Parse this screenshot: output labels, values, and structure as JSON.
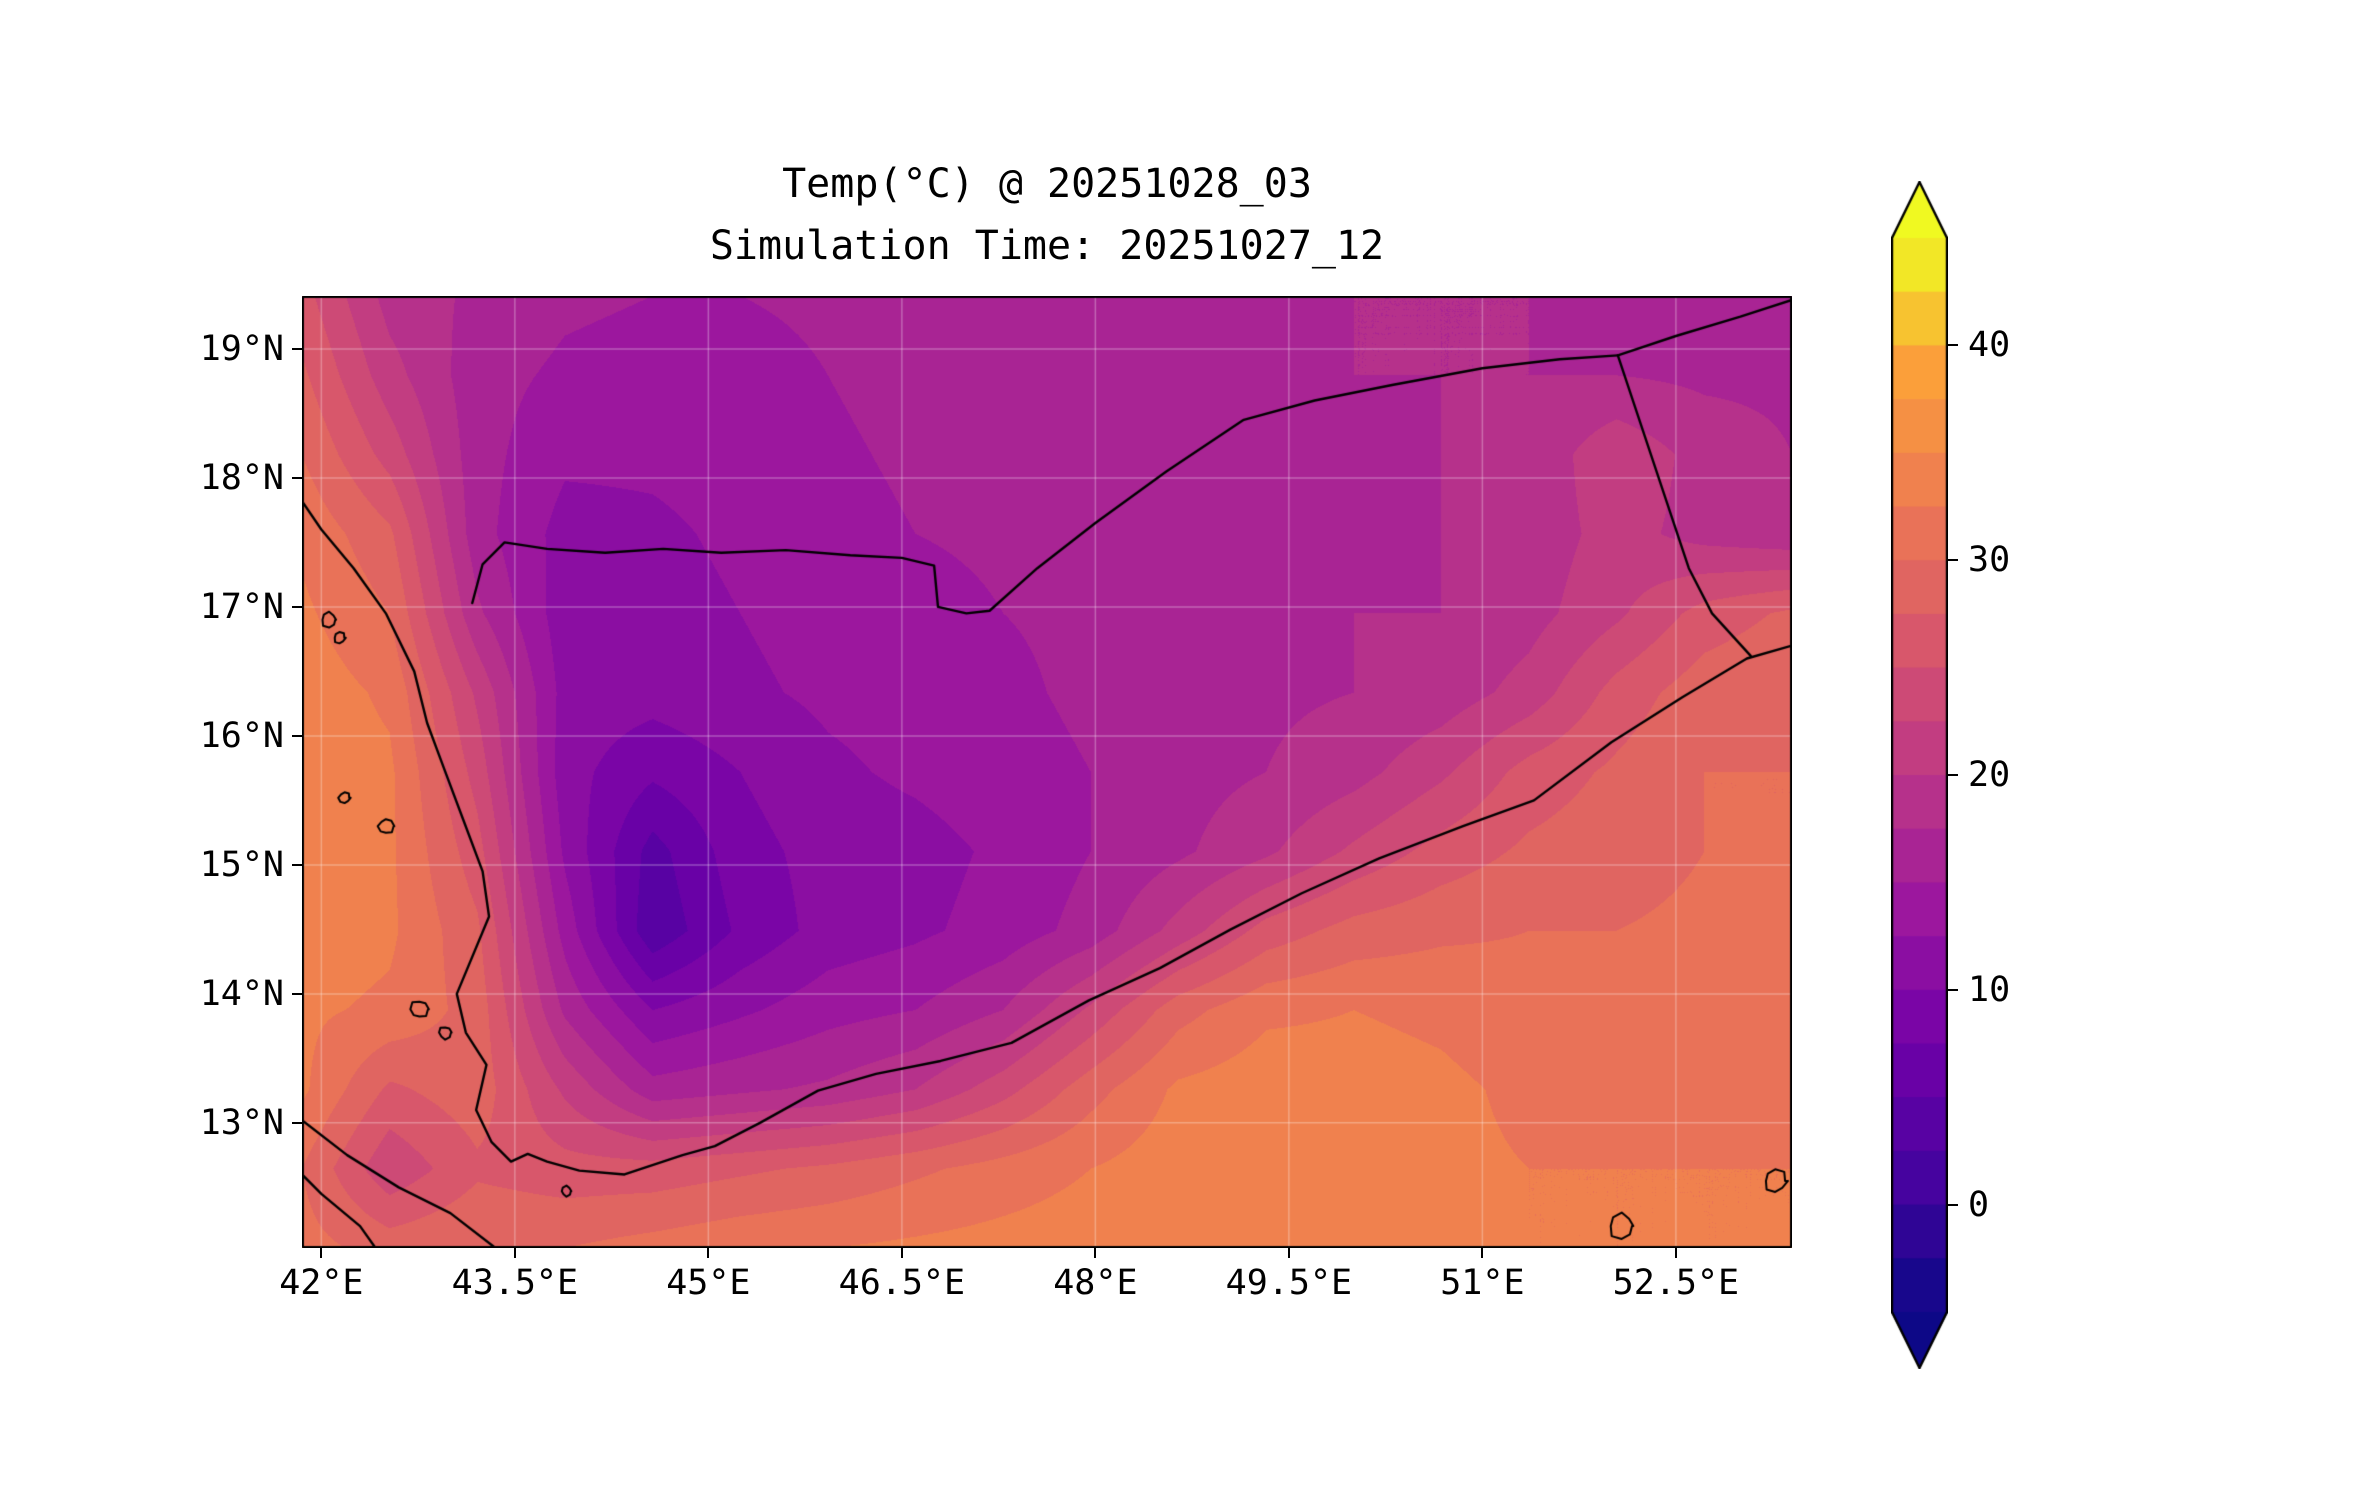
{
  "title": {
    "line1": "Temp(°C) @ 20251028_03",
    "line2": "Simulation Time: 20251027_12"
  },
  "axes": {
    "x_ticks": [
      {
        "label": "42°E",
        "lon": 42
      },
      {
        "label": "43.5°E",
        "lon": 43.5
      },
      {
        "label": "45°E",
        "lon": 45
      },
      {
        "label": "46.5°E",
        "lon": 46.5
      },
      {
        "label": "48°E",
        "lon": 48
      },
      {
        "label": "49.5°E",
        "lon": 49.5
      },
      {
        "label": "51°E",
        "lon": 51
      },
      {
        "label": "52.5°E",
        "lon": 52.5
      }
    ],
    "y_ticks": [
      {
        "label": "19°N",
        "lat": 19
      },
      {
        "label": "18°N",
        "lat": 18
      },
      {
        "label": "17°N",
        "lat": 17
      },
      {
        "label": "16°N",
        "lat": 16
      },
      {
        "label": "15°N",
        "lat": 15
      },
      {
        "label": "14°N",
        "lat": 14
      },
      {
        "label": "13°N",
        "lat": 13
      }
    ]
  },
  "colorbar": {
    "ticks": [
      {
        "label": "40",
        "value": 40
      },
      {
        "label": "30",
        "value": 30
      },
      {
        "label": "20",
        "value": 20
      },
      {
        "label": "10",
        "value": 10
      },
      {
        "label": "0",
        "value": 0
      }
    ],
    "vmin": -5,
    "vmax": 45,
    "band_step": 2.5,
    "over_color": "#f0f921",
    "under_color": "#0d0887"
  },
  "colormap": {
    "name": "plasma",
    "anchors": [
      [
        0.0,
        "#0d0887"
      ],
      [
        0.125,
        "#46039f"
      ],
      [
        0.25,
        "#7201a8"
      ],
      [
        0.375,
        "#9c179e"
      ],
      [
        0.5,
        "#bd3786"
      ],
      [
        0.625,
        "#d8576b"
      ],
      [
        0.75,
        "#ed7953"
      ],
      [
        0.875,
        "#fb9f3a"
      ],
      [
        1.0,
        "#f0f921"
      ]
    ]
  },
  "chart_data": {
    "type": "heatmap",
    "title": "Temp(°C) @ 20251028_03",
    "subtitle": "Simulation Time: 20251027_12",
    "units": "°C",
    "lon_range": [
      41.85,
      53.4
    ],
    "lat_range": [
      12.03,
      19.41
    ],
    "levels": {
      "min": -5,
      "max": 45,
      "step": 2.5
    },
    "grid_lons": [
      41.85,
      42.53,
      43.21,
      43.89,
      44.57,
      45.25,
      45.93,
      46.61,
      47.29,
      47.96,
      48.64,
      49.32,
      50.0,
      50.68,
      51.36,
      52.04,
      52.72,
      53.4
    ],
    "grid_lats": [
      19.41,
      18.8,
      18.18,
      17.57,
      16.95,
      16.34,
      15.72,
      15.11,
      14.49,
      13.88,
      13.26,
      12.65,
      12.03
    ],
    "values_c": [
      [
        26,
        19,
        17,
        15.5,
        15,
        15,
        15.5,
        16.5,
        17,
        17,
        17,
        17,
        17.5,
        17.5,
        17.5,
        17,
        17,
        17
      ],
      [
        28,
        21,
        16,
        14.5,
        14,
        14,
        15,
        16,
        16.5,
        17,
        17,
        17,
        17.5,
        17.5,
        17.5,
        17.5,
        17,
        17
      ],
      [
        30,
        24,
        16,
        13,
        13,
        13.5,
        14.5,
        15.5,
        16,
        16.5,
        17,
        17,
        17,
        17.5,
        18,
        22,
        19,
        17.5
      ],
      [
        32,
        28,
        16,
        11.5,
        12,
        13,
        14,
        15,
        15.5,
        16,
        16.5,
        17,
        17,
        17.5,
        18.5,
        21,
        19,
        18
      ],
      [
        33,
        30,
        18,
        11,
        11.5,
        12.5,
        13.5,
        14,
        15,
        15.5,
        16.5,
        17,
        17.5,
        17.5,
        19,
        22,
        26,
        28
      ],
      [
        34,
        32,
        22,
        11.5,
        11,
        12,
        13,
        13.5,
        14.5,
        15.5,
        16.5,
        17,
        17.5,
        18.5,
        21,
        26,
        29,
        30
      ],
      [
        34,
        33,
        24,
        11,
        8,
        10,
        12,
        13,
        14,
        15,
        16.5,
        17.5,
        19,
        22,
        26,
        28,
        30,
        30
      ],
      [
        34,
        33,
        26,
        12,
        4,
        9,
        11,
        11.5,
        13,
        15,
        17,
        19.5,
        23,
        26,
        28,
        29,
        30,
        30
      ],
      [
        34,
        33,
        28,
        14,
        3,
        8,
        11,
        12,
        13.5,
        16,
        21,
        26,
        28.5,
        29.5,
        30,
        30,
        30.5,
        30.5
      ],
      [
        33,
        32,
        29,
        17,
        10,
        12,
        14,
        15,
        17.5,
        23,
        29,
        32,
        32.5,
        32,
        31,
        30.5,
        31,
        31
      ],
      [
        33,
        27,
        29,
        22,
        16,
        17,
        18,
        20,
        24,
        29,
        33,
        34,
        33.5,
        33,
        32,
        31.5,
        31.5,
        31.5
      ],
      [
        30,
        23,
        27,
        26,
        26,
        27,
        28,
        29.5,
        31,
        32.5,
        34,
        34,
        33.5,
        33,
        32.5,
        32.5,
        32.5,
        32.5
      ],
      [
        31,
        29,
        30,
        30,
        31,
        32,
        32.5,
        33,
        33.5,
        34,
        34,
        33.5,
        33,
        32.5,
        32.5,
        32.5,
        32.5,
        32.5
      ]
    ]
  },
  "geo": {
    "coastline": [
      [
        41.85,
        17.82
      ],
      [
        42.0,
        17.6
      ],
      [
        42.25,
        17.3
      ],
      [
        42.5,
        16.95
      ],
      [
        42.72,
        16.5
      ],
      [
        42.82,
        16.1
      ],
      [
        42.95,
        15.75
      ],
      [
        43.1,
        15.35
      ],
      [
        43.25,
        14.95
      ],
      [
        43.3,
        14.6
      ],
      [
        43.05,
        14.0
      ],
      [
        43.12,
        13.7
      ],
      [
        43.28,
        13.45
      ],
      [
        43.2,
        13.1
      ],
      [
        43.32,
        12.85
      ],
      [
        43.47,
        12.7
      ],
      [
        43.6,
        12.76
      ],
      [
        43.75,
        12.7
      ],
      [
        44.0,
        12.63
      ],
      [
        44.35,
        12.6
      ],
      [
        44.8,
        12.75
      ],
      [
        45.05,
        12.82
      ],
      [
        45.4,
        13.0
      ],
      [
        45.85,
        13.25
      ],
      [
        46.3,
        13.38
      ],
      [
        46.8,
        13.48
      ],
      [
        47.35,
        13.62
      ],
      [
        47.95,
        13.95
      ],
      [
        48.5,
        14.2
      ],
      [
        49.05,
        14.5
      ],
      [
        49.6,
        14.78
      ],
      [
        50.2,
        15.05
      ],
      [
        50.85,
        15.3
      ],
      [
        51.4,
        15.5
      ],
      [
        52.0,
        15.95
      ],
      [
        52.55,
        16.3
      ],
      [
        53.05,
        16.6
      ],
      [
        53.4,
        16.7
      ]
    ],
    "border_saudi": [
      [
        43.17,
        17.03
      ],
      [
        43.25,
        17.33
      ],
      [
        43.42,
        17.5
      ],
      [
        43.75,
        17.45
      ],
      [
        44.2,
        17.42
      ],
      [
        44.65,
        17.45
      ],
      [
        45.1,
        17.42
      ],
      [
        45.6,
        17.44
      ],
      [
        46.1,
        17.4
      ],
      [
        46.5,
        17.38
      ],
      [
        46.75,
        17.32
      ],
      [
        46.78,
        17.0
      ],
      [
        47.0,
        16.95
      ],
      [
        47.18,
        16.97
      ],
      [
        47.55,
        17.3
      ],
      [
        48.0,
        17.65
      ],
      [
        48.55,
        18.05
      ],
      [
        49.15,
        18.45
      ],
      [
        49.7,
        18.6
      ],
      [
        50.3,
        18.72
      ],
      [
        51.0,
        18.85
      ],
      [
        51.6,
        18.92
      ],
      [
        52.05,
        18.95
      ]
    ],
    "border_ne": [
      [
        52.05,
        18.95
      ],
      [
        52.5,
        19.1
      ],
      [
        53.0,
        19.25
      ],
      [
        53.4,
        19.38
      ]
    ],
    "border_oman": [
      [
        52.05,
        18.95
      ],
      [
        52.3,
        18.2
      ],
      [
        52.6,
        17.3
      ],
      [
        52.78,
        16.95
      ],
      [
        53.08,
        16.62
      ]
    ],
    "minor_coast": [
      [
        [
          41.85,
          13.02
        ],
        [
          42.2,
          12.75
        ],
        [
          42.6,
          12.5
        ],
        [
          43.0,
          12.3
        ],
        [
          43.35,
          12.03
        ]
      ],
      [
        [
          41.85,
          12.6
        ],
        [
          42.0,
          12.45
        ],
        [
          42.3,
          12.2
        ],
        [
          42.42,
          12.03
        ]
      ]
    ],
    "islands": [
      {
        "lon": 42.06,
        "lat": 16.9,
        "r": 0.06
      },
      {
        "lon": 42.14,
        "lat": 16.76,
        "r": 0.045
      },
      {
        "lon": 42.18,
        "lat": 15.52,
        "r": 0.045
      },
      {
        "lon": 42.5,
        "lat": 15.3,
        "r": 0.06
      },
      {
        "lon": 42.76,
        "lat": 13.88,
        "r": 0.07
      },
      {
        "lon": 42.96,
        "lat": 13.7,
        "r": 0.05
      },
      {
        "lon": 43.9,
        "lat": 12.47,
        "r": 0.04
      },
      {
        "lon": 52.08,
        "lat": 12.2,
        "r": 0.1
      },
      {
        "lon": 53.27,
        "lat": 12.55,
        "r": 0.09
      }
    ]
  }
}
